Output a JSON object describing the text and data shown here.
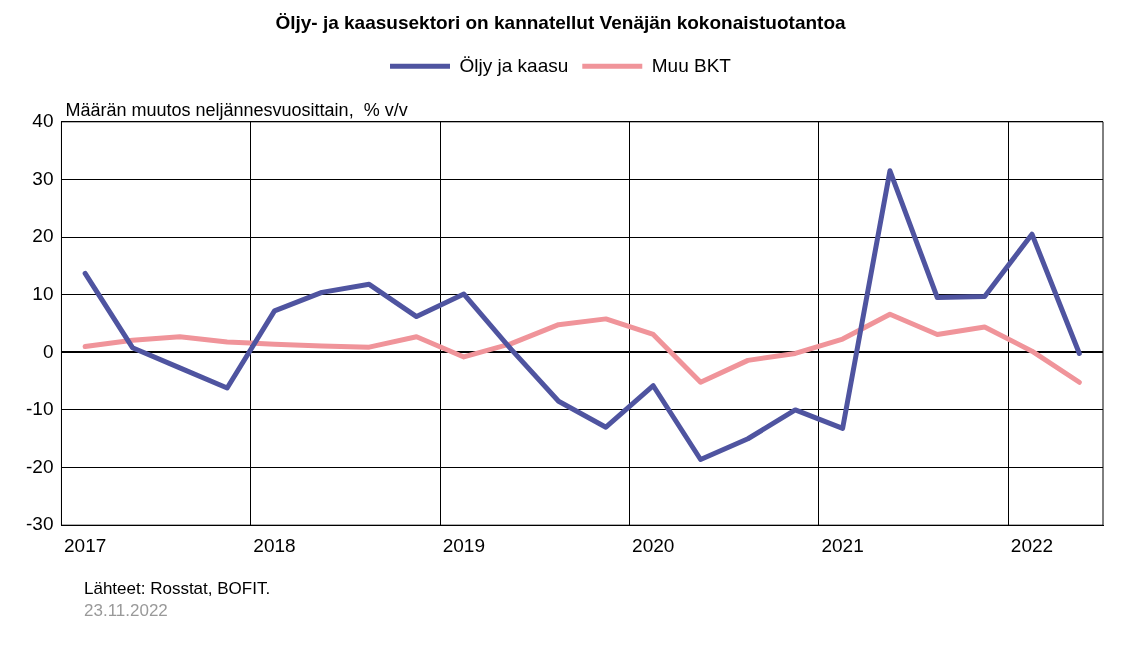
{
  "chart_data": {
    "type": "line",
    "title": "Öljy- ja kaasusektori on kannatellut Venäjän kokonaistuotantoa",
    "ylabel": "Määrän muutos neljännesvuosittain,  % v/v",
    "categories": [
      "2017",
      null,
      null,
      null,
      "2018",
      null,
      null,
      null,
      "2019",
      null,
      null,
      null,
      "2020",
      null,
      null,
      null,
      "2021",
      null,
      null,
      null,
      "2022",
      null
    ],
    "series": [
      {
        "name": "Öljy ja kaasu",
        "color": "#4f54a0",
        "values": [
          13.7,
          0.8,
          -2.7,
          -6.2,
          7.2,
          10.4,
          11.8,
          6.2,
          10.1,
          0.5,
          -8.5,
          -13,
          -5.8,
          -18.6,
          -15,
          -10,
          -13.2,
          31.5,
          9.5,
          9.7,
          20.5,
          -0.2
        ]
      },
      {
        "name": "Muu BKT",
        "color": "#f0949a",
        "values": [
          1.0,
          2.1,
          2.7,
          1.8,
          1.4,
          1.1,
          0.9,
          2.7,
          -0.8,
          1.5,
          4.8,
          5.8,
          3.1,
          -5.2,
          -1.4,
          -0.2,
          2.3,
          6.6,
          3.1,
          4.4,
          0.2,
          -5.2
        ]
      }
    ],
    "ylim": [
      -30,
      40
    ],
    "yticks": [
      -30,
      -20,
      -10,
      0,
      10,
      20,
      30,
      40
    ],
    "grid": true,
    "legend": "top",
    "marker": "none",
    "line_style": "solid",
    "annotations": [
      "Lähteet: Rosstat, BOFIT.",
      "23.11.2022"
    ]
  }
}
